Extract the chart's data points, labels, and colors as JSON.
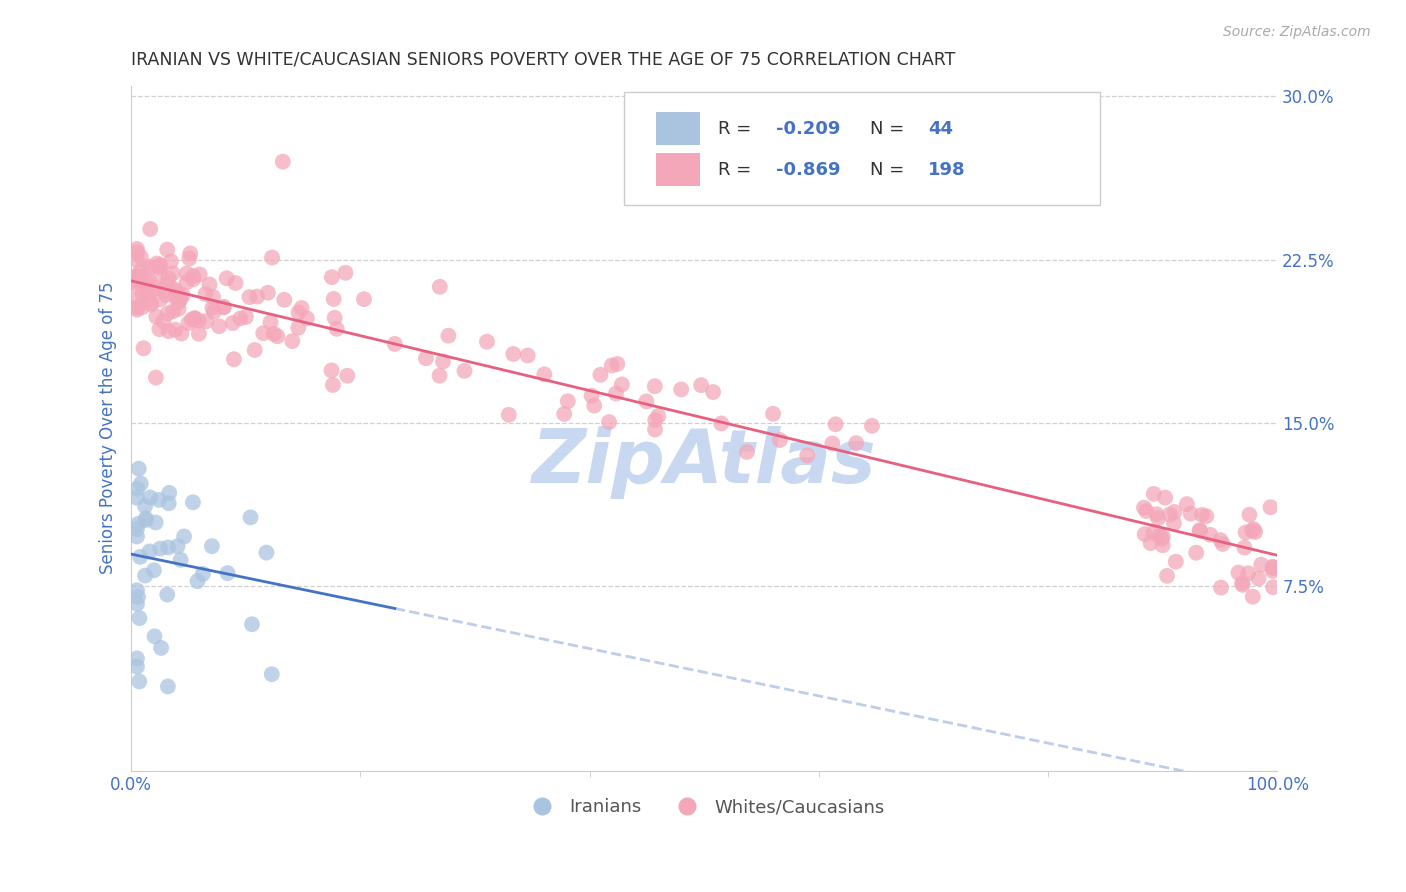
{
  "title": "IRANIAN VS WHITE/CAUCASIAN SENIORS POVERTY OVER THE AGE OF 75 CORRELATION CHART",
  "source": "Source: ZipAtlas.com",
  "ylabel": "Seniors Poverty Over the Age of 75",
  "xmin": 0.0,
  "xmax": 1.0,
  "ymin": 0.0,
  "ymax": 0.3,
  "R_iranian": -0.209,
  "N_iranian": 44,
  "R_white": -0.869,
  "N_white": 198,
  "iranian_color": "#aac4e0",
  "white_color": "#f4a7b9",
  "iranian_line_color": "#4472c4",
  "white_line_color": "#e86080",
  "background_color": "#ffffff",
  "grid_color": "#d0d0d0",
  "title_color": "#333333",
  "axis_label_color": "#4472c4",
  "tick_label_color": "#4472c4",
  "watermark_text": "ZipAtlas",
  "watermark_color": "#c8d8f0"
}
